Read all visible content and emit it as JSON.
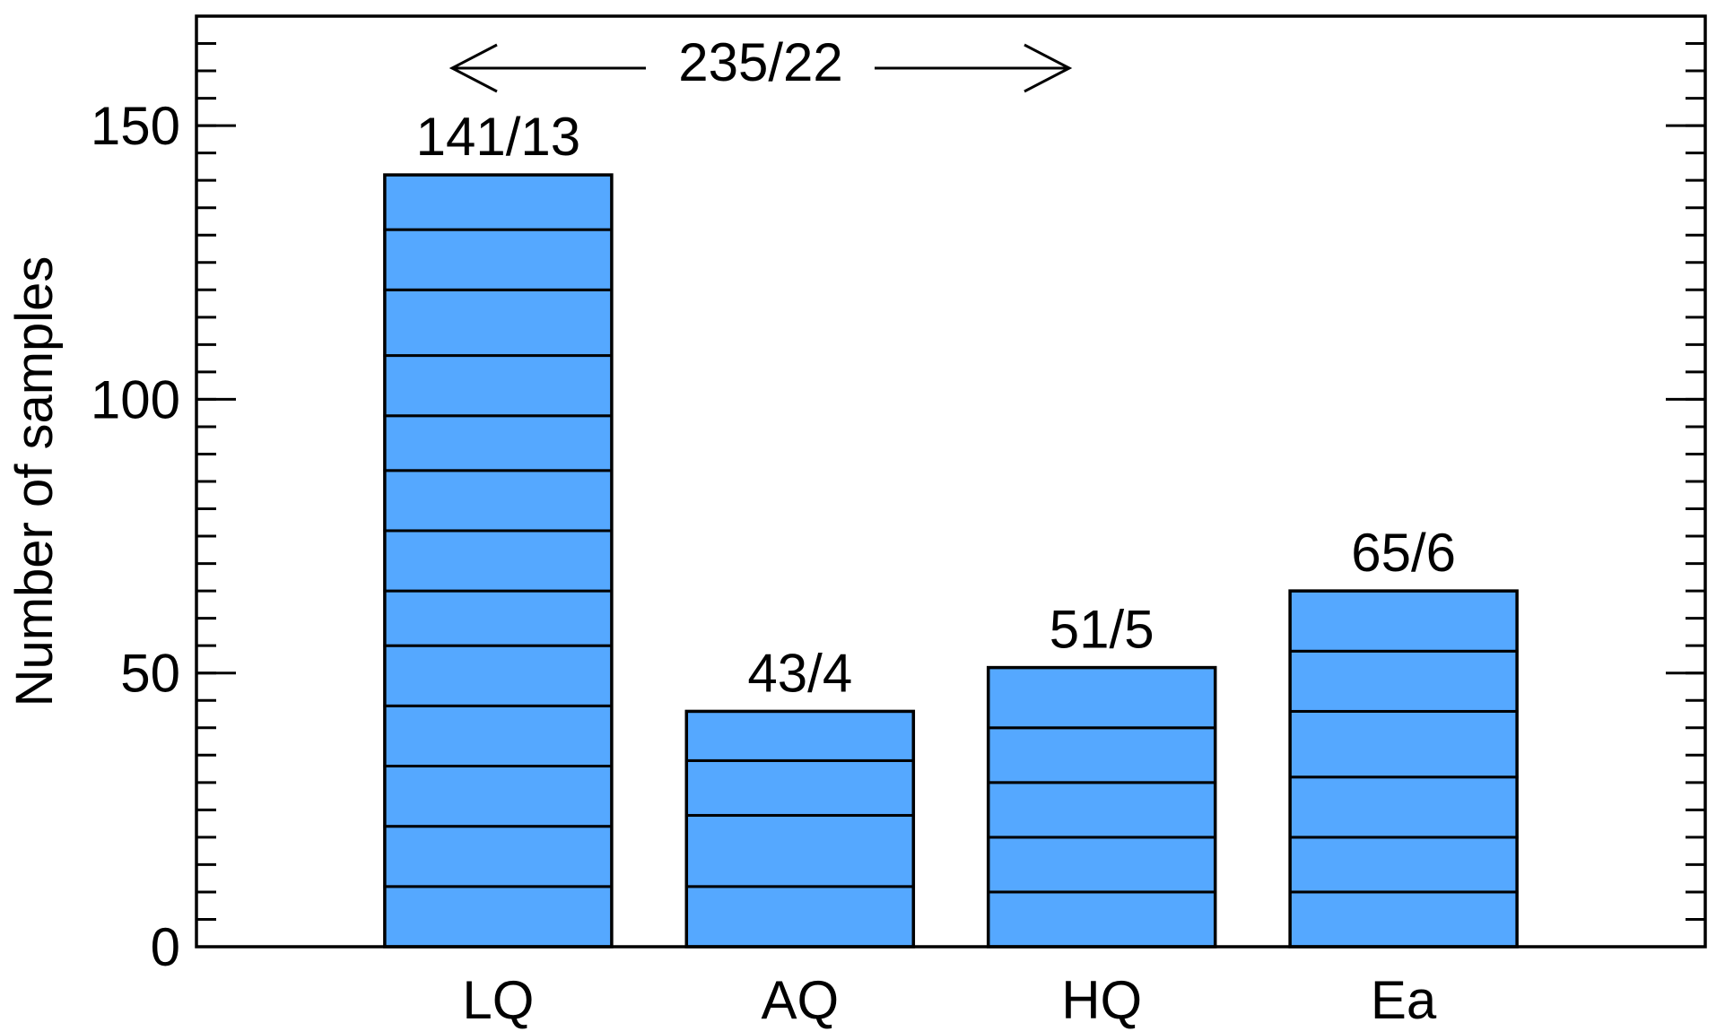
{
  "chart_data": {
    "type": "bar",
    "y_label": "Number of samples",
    "categories": [
      "LQ",
      "AQ",
      "HQ",
      "Ea"
    ],
    "values": [
      141,
      43,
      51,
      65
    ],
    "value_labels": [
      "141/13",
      "43/4",
      "51/5",
      "65/6"
    ],
    "segments": [
      [
        11,
        11,
        11,
        11,
        11,
        10,
        11,
        11,
        10,
        11,
        12,
        11,
        10
      ],
      [
        11,
        13,
        10,
        9
      ],
      [
        10,
        10,
        10,
        10,
        11
      ],
      [
        10,
        10,
        11,
        12,
        11,
        11
      ]
    ],
    "color": "#55a8ff",
    "ylim": [
      0,
      170
    ],
    "yticks": [
      0,
      50,
      100,
      150
    ],
    "minor_tick_step": 5,
    "annotation": "235/22"
  }
}
